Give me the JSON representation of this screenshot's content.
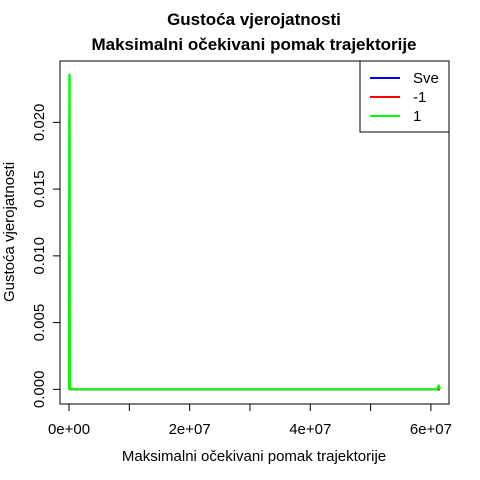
{
  "chart_data": {
    "type": "line",
    "title": "Gustoća vjerojatnosti",
    "subtitle": "Maksimalni očekivani pomak trajektorije",
    "xlabel": "Maksimalni očekivani pomak trajektorije",
    "ylabel": "Gustoća vjerojatnosti",
    "xlim": [
      -1500000,
      63000000
    ],
    "ylim": [
      -0.0011,
      0.0246
    ],
    "x_ticks": [
      0,
      20000000,
      40000000,
      60000000
    ],
    "x_tick_labels": [
      "0e+00",
      "2e+07",
      "4e+07",
      "6e+07"
    ],
    "x_ticks_unlabeled": [
      10000000,
      30000000,
      50000000
    ],
    "y_ticks": [
      0,
      0.005,
      0.01,
      0.015,
      0.02
    ],
    "y_tick_labels": [
      "0.000",
      "0.005",
      "0.010",
      "0.015",
      "0.020"
    ],
    "legend_position": "top-right",
    "series": [
      {
        "name": "Sve",
        "color": "#0000ff",
        "points": [
          [
            0,
            0
          ],
          [
            50000,
            0.0204
          ],
          [
            100000,
            0.0002
          ],
          [
            200000,
            0
          ],
          [
            61500000,
            0
          ]
        ]
      },
      {
        "name": "-1",
        "color": "#ff0000",
        "points": [
          [
            0,
            0
          ],
          [
            20000,
            0.0066
          ],
          [
            60000,
            0.0001
          ],
          [
            200000,
            0
          ],
          [
            61500000,
            0
          ]
        ]
      },
      {
        "name": "1",
        "color": "#00ff00",
        "points": [
          [
            0,
            0
          ],
          [
            40000,
            0.0236
          ],
          [
            120000,
            0.0235
          ],
          [
            160000,
            0.0002
          ],
          [
            300000,
            0
          ],
          [
            61000000,
            0
          ],
          [
            61300000,
            0.0003
          ],
          [
            61500000,
            0
          ]
        ]
      }
    ]
  }
}
